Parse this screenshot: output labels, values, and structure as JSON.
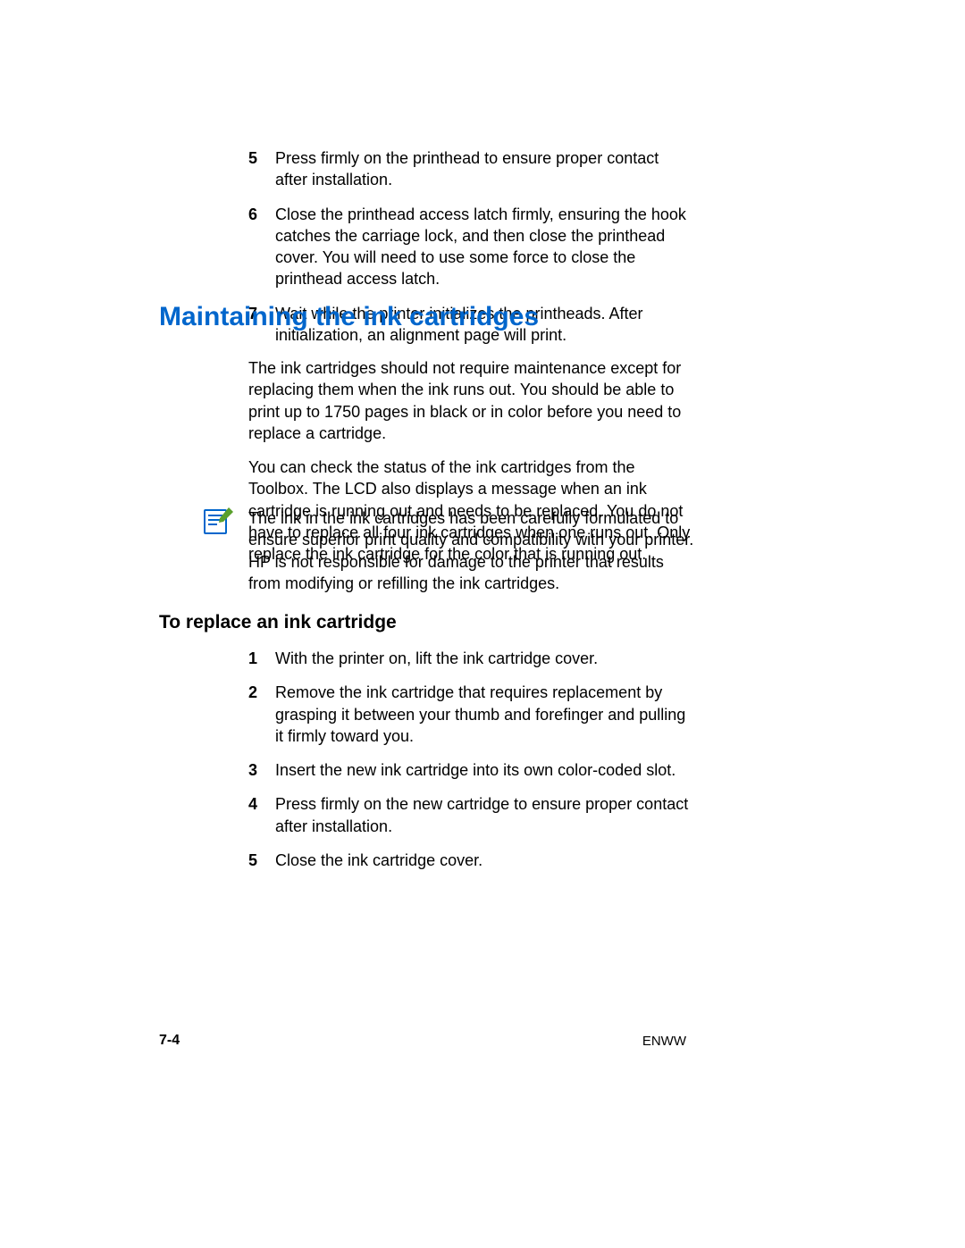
{
  "topList": [
    {
      "n": "5",
      "t": "Press firmly on the printhead to ensure proper contact after installation."
    },
    {
      "n": "6",
      "t": "Close the printhead access latch firmly, ensuring the hook catches the carriage lock, and then close the printhead cover. You will need to use some force to close the printhead access latch."
    },
    {
      "n": "7",
      "t": "Wait while the printer initializes the printheads. After initialization, an alignment page will print."
    }
  ],
  "heading1": "Maintaining the ink cartridges",
  "heading1_color": "#0066cc",
  "heading1_fontsize": 30,
  "bodyParas": [
    "The ink cartridges should not require maintenance except for replacing them when the ink runs out. You should be able to print up to 1750 pages in black or in color before you need to replace a cartridge.",
    "You can check the status of the ink cartridges from the Toolbox. The LCD also displays a message when an ink cartridge is running out and needs to be replaced. You do not have to replace all four ink cartridges when one runs out. Only replace the ink cartridge for the color that is running out."
  ],
  "note": {
    "icon_color": "#0066cc",
    "pencil_color": "#5aa02c",
    "text": "The ink in the ink cartridges has been carefully formulated to ensure superior print quality and compatibility with your printer. HP is not responsible for damage to the printer that results from modifying or refilling the ink cartridges."
  },
  "heading2": "To replace an ink cartridge",
  "heading2_fontsize": 21,
  "secondList": [
    {
      "n": "1",
      "t": "With the printer on, lift the ink cartridge cover."
    },
    {
      "n": "2",
      "t": "Remove the ink cartridge that requires replacement by grasping it between your thumb and forefinger and pulling it firmly toward you."
    },
    {
      "n": "3",
      "t": "Insert the new ink cartridge into its own color-coded slot."
    },
    {
      "n": "4",
      "t": "Press firmly on the new cartridge to ensure proper contact after installation."
    },
    {
      "n": "5",
      "t": "Close the ink cartridge cover."
    }
  ],
  "footer": {
    "left": "7-4",
    "right": "ENWW"
  },
  "page_bg": "#ffffff",
  "text_color": "#000000",
  "body_fontsize": 18
}
